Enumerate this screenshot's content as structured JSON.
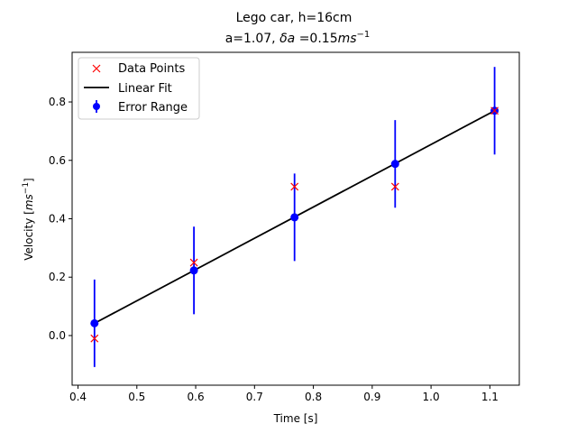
{
  "chart_data": {
    "type": "scatter",
    "title": "Lego car, h=16cm",
    "subtitle": {
      "prefix": "a=1.07, ",
      "delta_symbol": "δa",
      "middle": " =0.15",
      "unit_base": "ms",
      "unit_exp": "−1"
    },
    "xlabel": "Time [s]",
    "ylabel": {
      "prefix": "Velocity [",
      "unit_base": "ms",
      "unit_exp": "−1",
      "suffix": "]"
    },
    "xlim": [
      0.39,
      1.15
    ],
    "ylim": [
      -0.17,
      0.97
    ],
    "xticks": [
      0.4,
      0.5,
      0.6,
      0.7,
      0.8,
      0.9,
      1.0,
      1.1
    ],
    "xtick_labels": [
      "0.4",
      "0.5",
      "0.6",
      "0.7",
      "0.8",
      "0.9",
      "1.0",
      "1.1"
    ],
    "yticks": [
      0.0,
      0.2,
      0.4,
      0.6,
      0.8
    ],
    "ytick_labels": [
      "0.0",
      "0.2",
      "0.4",
      "0.6",
      "0.8"
    ],
    "grid": false,
    "legend_position": "top-left",
    "series": [
      {
        "name": "Data Points",
        "kind": "marker-x",
        "color": "#ff0000",
        "x": [
          0.428,
          0.597,
          0.768,
          0.939,
          1.108
        ],
        "y": [
          -0.01,
          0.25,
          0.51,
          0.51,
          0.77
        ]
      },
      {
        "name": "Linear Fit",
        "kind": "line",
        "color": "#000000",
        "x": [
          0.428,
          1.108
        ],
        "y": [
          0.042,
          0.77
        ]
      },
      {
        "name": "Error Range",
        "kind": "errorbar",
        "color": "#0000ff",
        "x": [
          0.428,
          0.597,
          0.768,
          0.939,
          1.108
        ],
        "y": [
          0.042,
          0.223,
          0.405,
          0.588,
          0.77
        ],
        "yerr": 0.15
      }
    ]
  }
}
